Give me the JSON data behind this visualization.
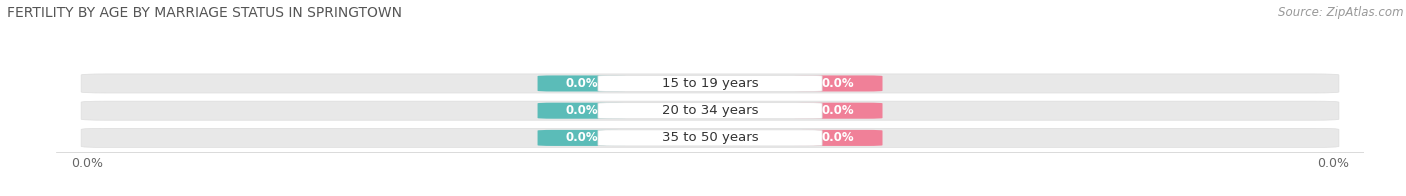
{
  "title": "FERTILITY BY AGE BY MARRIAGE STATUS IN SPRINGTOWN",
  "source": "Source: ZipAtlas.com",
  "categories": [
    "15 to 19 years",
    "20 to 34 years",
    "35 to 50 years"
  ],
  "married_values": [
    0.0,
    0.0,
    0.0
  ],
  "unmarried_values": [
    0.0,
    0.0,
    0.0
  ],
  "married_color": "#5bbcb8",
  "unmarried_color": "#f08098",
  "bar_bg_color": "#e8e8e8",
  "center_pill_color": "#f0f0f0",
  "bar_height": 0.62,
  "left_label": "0.0%",
  "right_label": "0.0%",
  "title_fontsize": 10,
  "source_fontsize": 8.5,
  "tick_fontsize": 9,
  "background_color": "#ffffff",
  "row_colors": [
    "#f0f0f0",
    "#f8f8f8",
    "#f0f0f0"
  ],
  "row_border_color": "#dddddd"
}
